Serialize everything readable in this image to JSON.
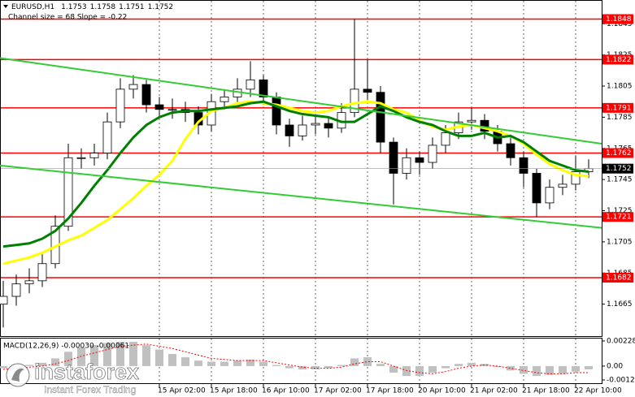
{
  "chart_data": [
    {
      "type": "candlestick",
      "title": "EURUSD,H1",
      "last_bar": [
        1.1753,
        1.1758,
        1.1751,
        1.1752
      ],
      "subtitle": "Channel size = 68 Slope = -0.22",
      "x": [
        0,
        4,
        8,
        12,
        16,
        20,
        24,
        28,
        32,
        36,
        40,
        44,
        48,
        52,
        56,
        60,
        64,
        68,
        72,
        76,
        80,
        84,
        88,
        92,
        96,
        100,
        104,
        108,
        112,
        116,
        120,
        124,
        128,
        132,
        136,
        140,
        144,
        148,
        152,
        156,
        160,
        164,
        168,
        172,
        176,
        180
      ],
      "open": [
        1.1665,
        1.167,
        1.1678,
        1.168,
        1.1691,
        1.1715,
        1.1759,
        1.1759,
        1.1762,
        1.1782,
        1.1803,
        1.1806,
        1.1793,
        1.179,
        1.179,
        1.1788,
        1.178,
        1.1795,
        1.1798,
        1.1803,
        1.1809,
        1.1798,
        1.178,
        1.1773,
        1.178,
        1.1781,
        1.1778,
        1.1788,
        1.1803,
        1.1801,
        1.1769,
        1.1749,
        1.1759,
        1.1756,
        1.1767,
        1.1775,
        1.1782,
        1.1783,
        1.1776,
        1.1768,
        1.1759,
        1.1749,
        1.173,
        1.174,
        1.1742,
        1.175
      ],
      "high": [
        1.168,
        1.1684,
        1.1688,
        1.1697,
        1.1722,
        1.1768,
        1.1765,
        1.1768,
        1.1788,
        1.181,
        1.1812,
        1.1809,
        1.1798,
        1.1797,
        1.1795,
        1.1792,
        1.18,
        1.1803,
        1.181,
        1.1821,
        1.1812,
        1.1801,
        1.1784,
        1.1786,
        1.1787,
        1.1785,
        1.1794,
        1.1848,
        1.1822,
        1.1805,
        1.1772,
        1.1765,
        1.1763,
        1.1772,
        1.178,
        1.1788,
        1.1791,
        1.1787,
        1.178,
        1.1772,
        1.1763,
        1.1752,
        1.1745,
        1.1748,
        1.176,
        1.1758
      ],
      "low": [
        1.165,
        1.1664,
        1.1672,
        1.1676,
        1.1688,
        1.1712,
        1.1752,
        1.1754,
        1.1758,
        1.1778,
        1.1797,
        1.1788,
        1.1785,
        1.1784,
        1.1782,
        1.1774,
        1.1776,
        1.179,
        1.1794,
        1.1798,
        1.1793,
        1.1774,
        1.1766,
        1.177,
        1.1774,
        1.1772,
        1.1775,
        1.1785,
        1.1796,
        1.1762,
        1.1729,
        1.1745,
        1.1748,
        1.1752,
        1.1762,
        1.1771,
        1.1777,
        1.1771,
        1.1763,
        1.1754,
        1.174,
        1.1721,
        1.1726,
        1.1735,
        1.1738,
        1.1746
      ],
      "close": [
        1.167,
        1.1678,
        1.168,
        1.1691,
        1.1715,
        1.1759,
        1.1759,
        1.1762,
        1.1782,
        1.1803,
        1.1806,
        1.1793,
        1.179,
        1.179,
        1.1788,
        1.178,
        1.1795,
        1.1798,
        1.1803,
        1.1809,
        1.1798,
        1.178,
        1.1773,
        1.178,
        1.1781,
        1.1778,
        1.1788,
        1.1803,
        1.1801,
        1.1769,
        1.1749,
        1.1759,
        1.1756,
        1.1767,
        1.1775,
        1.1782,
        1.1783,
        1.1776,
        1.1768,
        1.1759,
        1.1749,
        1.173,
        1.174,
        1.1742,
        1.175,
        1.1752
      ],
      "moving_averages": [
        {
          "color": "#ffff00",
          "values": [
            1.1691,
            1.1693,
            1.1695,
            1.1698,
            1.1702,
            1.1706,
            1.1709,
            1.1714,
            1.1719,
            1.1726,
            1.1733,
            1.1741,
            1.1748,
            1.1757,
            1.1771,
            1.1782,
            1.1789,
            1.1791,
            1.1794,
            1.1795,
            1.1794,
            1.1793,
            1.1791,
            1.1789,
            1.1788,
            1.1789,
            1.1792,
            1.1794,
            1.1795,
            1.1794,
            1.179,
            1.1788,
            1.1783,
            1.1779,
            1.1777,
            1.1779,
            1.178,
            1.1778,
            1.1776,
            1.1773,
            1.1768,
            1.1761,
            1.1755,
            1.1751,
            1.1748,
            1.1747
          ]
        },
        {
          "color": "#008000",
          "values": [
            1.1702,
            1.1703,
            1.1704,
            1.1707,
            1.1712,
            1.172,
            1.173,
            1.1741,
            1.1751,
            1.1762,
            1.1772,
            1.178,
            1.1785,
            1.1788,
            1.1789,
            1.1789,
            1.179,
            1.1791,
            1.1792,
            1.1794,
            1.1795,
            1.1792,
            1.1789,
            1.1787,
            1.1786,
            1.1785,
            1.1782,
            1.1782,
            1.1787,
            1.1792,
            1.1789,
            1.1785,
            1.1782,
            1.178,
            1.1776,
            1.1773,
            1.1773,
            1.1775,
            1.1772,
            1.1773,
            1.1769,
            1.1763,
            1.1757,
            1.1754,
            1.1751,
            1.175
          ]
        }
      ],
      "channel": {
        "color": "#33cc33",
        "upper": [
          1.1823,
          1.1768
        ],
        "lower": [
          1.1754,
          1.1714
        ]
      },
      "levels": {
        "color": "#ff0000",
        "values": [
          1.1848,
          1.1822,
          1.1791,
          1.1762,
          1.1721,
          1.1682
        ]
      },
      "xlim": [
        -1,
        184
      ],
      "xticks": [
        {
          "value": 48,
          "label": "15 Apr 02:00"
        },
        {
          "value": 64,
          "label": "15 Apr 18:00"
        },
        {
          "value": 80,
          "label": "16 Apr 10:00"
        },
        {
          "value": 96,
          "label": "17 Apr 02:00"
        },
        {
          "value": 112,
          "label": "17 Apr 18:00"
        },
        {
          "value": 128,
          "label": "20 Apr 10:00"
        },
        {
          "value": 144,
          "label": "21 Apr 02:00"
        },
        {
          "value": 160,
          "label": "21 Apr 18:00"
        },
        {
          "value": 176,
          "label": "22 Apr 10:00"
        }
      ],
      "ylim": [
        1.1645,
        1.1854
      ],
      "yticks": [
        1.1665,
        1.1685,
        1.1705,
        1.1725,
        1.1745,
        1.1765,
        1.1785,
        1.1805,
        1.1825,
        1.1845
      ],
      "grid": true
    },
    {
      "type": "macd",
      "title": "MACD(12,26,9) -0.00030 -0.00061",
      "histogram_color": "#c0c0c0",
      "histogram": [
        -0.0002,
        -0.0001,
        0.0001,
        0.0003,
        0.0007,
        0.0013,
        0.0017,
        0.0019,
        0.0021,
        0.0022,
        0.0022,
        0.0019,
        0.0015,
        0.0011,
        0.0008,
        0.0005,
        0.0004,
        0.0004,
        0.0005,
        0.0006,
        0.0004,
        0.0001,
        -0.0002,
        -0.0003,
        -0.0003,
        -0.0002,
        0.0001,
        0.0007,
        0.0008,
        0.0002,
        -0.0006,
        -0.0009,
        -0.0009,
        -0.0006,
        -0.0002,
        0.0002,
        0.0003,
        0.0002,
        -0.0001,
        -0.0004,
        -0.0007,
        -0.0009,
        -0.0008,
        -0.0007,
        -0.0005,
        -0.0003
      ],
      "signal_color": "#ff0000",
      "signal": [
        -0.0003,
        -0.0002,
        -0.0001,
        0,
        0.0002,
        0.0005,
        0.0009,
        0.0012,
        0.0015,
        0.0018,
        0.0019,
        0.002,
        0.0018,
        0.0016,
        0.0013,
        0.001,
        0.0007,
        0.0006,
        0.0005,
        0.0005,
        0.0005,
        0.0003,
        0.0001,
        -0.0001,
        -0.0002,
        -0.0002,
        -0.0001,
        0.0002,
        0.0004,
        0.0004,
        0,
        -0.0004,
        -0.0006,
        -0.0007,
        -0.0005,
        -0.0002,
        0,
        0.0001,
        0,
        -0.0002,
        -0.0004,
        -0.0006,
        -0.0007,
        -0.0007,
        -0.0006,
        -0.0006
      ],
      "ylim": [
        -0.00126,
        0.00228
      ],
      "yticks": [
        -0.00126,
        {
          "value": 0,
          "label": "0.00"
        },
        0.00228
      ]
    }
  ],
  "watermark": {
    "brand": "instaforex",
    "tagline": "Instant Forex Trading"
  }
}
